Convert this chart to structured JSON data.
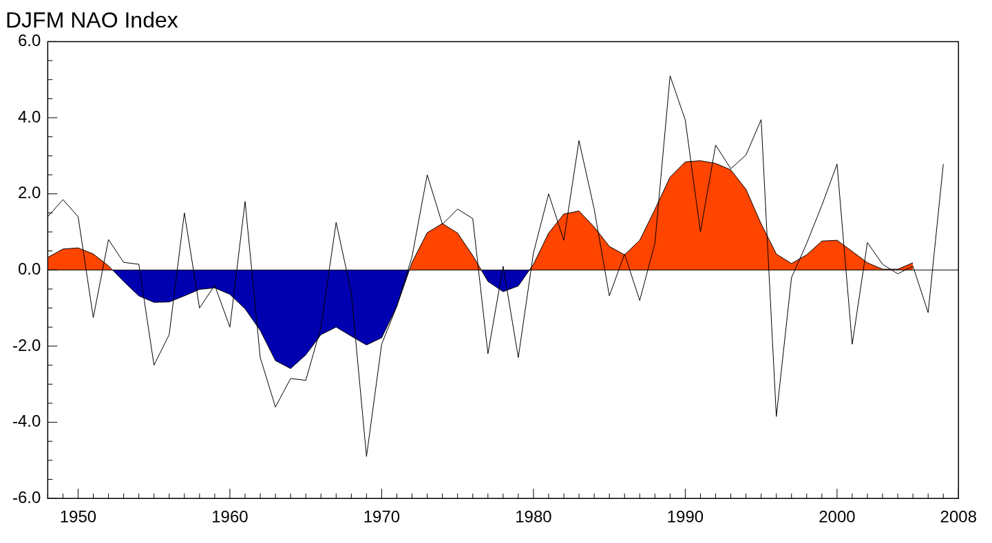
{
  "chart_data": {
    "type": "line",
    "title": "DJFM NAO Index",
    "xlim": [
      1948,
      2008
    ],
    "xticks": [
      {
        "value": 1948,
        "label": null
      },
      {
        "value": 1949,
        "label": null
      },
      1950,
      {
        "value": 1951,
        "label": null
      },
      {
        "value": 1952,
        "label": null
      },
      {
        "value": 1953,
        "label": null
      },
      {
        "value": 1954,
        "label": null
      },
      {
        "value": 1955,
        "label": null
      },
      {
        "value": 1956,
        "label": null
      },
      {
        "value": 1957,
        "label": null
      },
      {
        "value": 1958,
        "label": null
      },
      {
        "value": 1959,
        "label": null
      },
      1960,
      {
        "value": 1961,
        "label": null
      },
      {
        "value": 1962,
        "label": null
      },
      {
        "value": 1963,
        "label": null
      },
      {
        "value": 1964,
        "label": null
      },
      {
        "value": 1965,
        "label": null
      },
      {
        "value": 1966,
        "label": null
      },
      {
        "value": 1967,
        "label": null
      },
      {
        "value": 1968,
        "label": null
      },
      {
        "value": 1969,
        "label": null
      },
      1970,
      {
        "value": 1971,
        "label": null
      },
      {
        "value": 1972,
        "label": null
      },
      {
        "value": 1973,
        "label": null
      },
      {
        "value": 1974,
        "label": null
      },
      {
        "value": 1975,
        "label": null
      },
      {
        "value": 1976,
        "label": null
      },
      {
        "value": 1977,
        "label": null
      },
      {
        "value": 1978,
        "label": null
      },
      {
        "value": 1979,
        "label": null
      },
      1980,
      {
        "value": 1981,
        "label": null
      },
      {
        "value": 1982,
        "label": null
      },
      {
        "value": 1983,
        "label": null
      },
      {
        "value": 1984,
        "label": null
      },
      {
        "value": 1985,
        "label": null
      },
      {
        "value": 1986,
        "label": null
      },
      {
        "value": 1987,
        "label": null
      },
      {
        "value": 1988,
        "label": null
      },
      {
        "value": 1989,
        "label": null
      },
      1990,
      {
        "value": 1991,
        "label": null
      },
      {
        "value": 1992,
        "label": null
      },
      {
        "value": 1993,
        "label": null
      },
      {
        "value": 1994,
        "label": null
      },
      {
        "value": 1995,
        "label": null
      },
      {
        "value": 1996,
        "label": null
      },
      {
        "value": 1997,
        "label": null
      },
      {
        "value": 1998,
        "label": null
      },
      {
        "value": 1999,
        "label": null
      },
      2000,
      {
        "value": 2001,
        "label": null
      },
      {
        "value": 2002,
        "label": null
      },
      {
        "value": 2003,
        "label": null
      },
      {
        "value": 2004,
        "label": null
      },
      {
        "value": 2005,
        "label": null
      },
      {
        "value": 2006,
        "label": null
      },
      {
        "value": 2007,
        "label": null
      },
      2008
    ],
    "ylim": [
      -6,
      6
    ],
    "yticks": [
      {
        "value": -6,
        "label": "-6.0"
      },
      {
        "value": -5.5,
        "label": null
      },
      {
        "value": -5,
        "label": null
      },
      {
        "value": -4.5,
        "label": null
      },
      {
        "value": -4,
        "label": "-4.0"
      },
      {
        "value": -3.5,
        "label": null
      },
      {
        "value": -3,
        "label": null
      },
      {
        "value": -2.5,
        "label": null
      },
      {
        "value": -2,
        "label": "-2.0"
      },
      {
        "value": -1.5,
        "label": null
      },
      {
        "value": -1,
        "label": null
      },
      {
        "value": -0.5,
        "label": null
      },
      {
        "value": 0,
        "label": "0.0"
      },
      {
        "value": 0.5,
        "label": null
      },
      {
        "value": 1,
        "label": null
      },
      {
        "value": 1.5,
        "label": null
      },
      {
        "value": 2,
        "label": "2.0"
      },
      {
        "value": 2.5,
        "label": null
      },
      {
        "value": 3,
        "label": null
      },
      {
        "value": 3.5,
        "label": null
      },
      {
        "value": 4,
        "label": "4.0"
      },
      {
        "value": 4.5,
        "label": null
      },
      {
        "value": 5,
        "label": null
      },
      {
        "value": 5.5,
        "label": null
      },
      {
        "value": 6,
        "label": "6.0"
      }
    ],
    "grid": false,
    "legend": false,
    "ref_lines": [
      {
        "axis": "y",
        "value": 0,
        "color": "#000000"
      }
    ],
    "series": [
      {
        "type": "area",
        "color": "#000000",
        "x": [
          1948,
          1949,
          1950,
          1951,
          1952,
          1953,
          1954,
          1955,
          1956,
          1957,
          1958,
          1959,
          1960,
          1961,
          1962,
          1963,
          1964,
          1965,
          1966,
          1967,
          1968,
          1969,
          1970,
          1971,
          1972,
          1973,
          1974,
          1975,
          1976,
          1977,
          1978,
          1979,
          1980,
          1981,
          1982,
          1983,
          1984,
          1985,
          1986,
          1987,
          1988,
          1989,
          1990,
          1991,
          1992,
          1993,
          1994,
          1995,
          1996,
          1997,
          1998,
          1999,
          2000,
          2001,
          2002,
          2003,
          2004,
          2005
        ],
        "values": [
          0.33,
          0.55,
          0.58,
          0.42,
          0.11,
          -0.3,
          -0.68,
          -0.85,
          -0.84,
          -0.68,
          -0.51,
          -0.47,
          -0.64,
          -1.02,
          -1.59,
          -2.38,
          -2.59,
          -2.23,
          -1.7,
          -1.5,
          -1.74,
          -1.97,
          -1.78,
          -0.95,
          0.2,
          0.98,
          1.22,
          0.97,
          0.38,
          -0.3,
          -0.57,
          -0.42,
          0.15,
          0.97,
          1.47,
          1.55,
          1.13,
          0.62,
          0.4,
          0.78,
          1.59,
          2.44,
          2.84,
          2.87,
          2.8,
          2.63,
          2.12,
          1.21,
          0.42,
          0.17,
          0.4,
          0.76,
          0.78,
          0.49,
          0.19,
          0.02,
          0.02,
          0.19
        ],
        "colors": [
          "#ff4500",
          "#ff4500",
          "#ff4500",
          "#ff4500",
          "#ff4500",
          "#0000b0",
          "#0000b0",
          "#0000b0",
          "#0000b0",
          "#0000b0",
          "#0000b0",
          "#0000b0",
          "#0000b0",
          "#0000b0",
          "#0000b0",
          "#0000b0",
          "#0000b0",
          "#0000b0",
          "#0000b0",
          "#0000b0",
          "#0000b0",
          "#0000b0",
          "#0000b0",
          "#0000b0",
          "#ff4500",
          "#ff4500",
          "#ff4500",
          "#ff4500",
          "#ff4500",
          "#0000b0",
          "#0000b0",
          "#0000b0",
          "#ff4500",
          "#ff4500",
          "#ff4500",
          "#ff4500",
          "#ff4500",
          "#ff4500",
          "#ff4500",
          "#ff4500",
          "#ff4500",
          "#ff4500",
          "#ff4500",
          "#ff4500",
          "#ff4500",
          "#ff4500",
          "#ff4500",
          "#ff4500",
          "#ff4500",
          "#ff4500",
          "#ff4500",
          "#ff4500",
          "#ff4500",
          "#ff4500",
          "#ff4500",
          "#ff4500",
          "#ff4500",
          "#ff4500"
        ]
      },
      {
        "type": "line",
        "color": "#000000",
        "x": [
          1948,
          1949,
          1950,
          1951,
          1952,
          1953,
          1954,
          1955,
          1956,
          1957,
          1958,
          1959,
          1960,
          1961,
          1962,
          1963,
          1964,
          1965,
          1966,
          1967,
          1968,
          1969,
          1970,
          1971,
          1972,
          1973,
          1974,
          1975,
          1976,
          1977,
          1978,
          1979,
          1980,
          1981,
          1982,
          1983,
          1984,
          1985,
          1986,
          1987,
          1988,
          1989,
          1990,
          1991,
          1992,
          1993,
          1994,
          1995,
          1996,
          1997,
          1998,
          1999,
          2000,
          2001,
          2002,
          2003,
          2004,
          2005,
          2006,
          2007
        ],
        "values": [
          1.4,
          1.85,
          1.4,
          -1.25,
          0.8,
          0.2,
          0.15,
          -2.5,
          -1.7,
          1.5,
          -1.0,
          -0.4,
          -1.5,
          1.8,
          -2.3,
          -3.6,
          -2.85,
          -2.9,
          -1.5,
          1.25,
          -0.6,
          -4.9,
          -1.95,
          -0.95,
          0.35,
          2.5,
          1.2,
          1.6,
          1.35,
          -2.2,
          0.1,
          -2.3,
          0.45,
          2.0,
          0.78,
          3.4,
          1.6,
          -0.68,
          0.42,
          -0.8,
          0.7,
          5.1,
          3.94,
          1.0,
          3.28,
          2.66,
          3.02,
          3.95,
          -3.85,
          -0.2,
          0.7,
          1.7,
          2.78,
          -1.95,
          0.72,
          0.15,
          -0.1,
          0.1,
          -1.12,
          2.78
        ]
      }
    ]
  }
}
